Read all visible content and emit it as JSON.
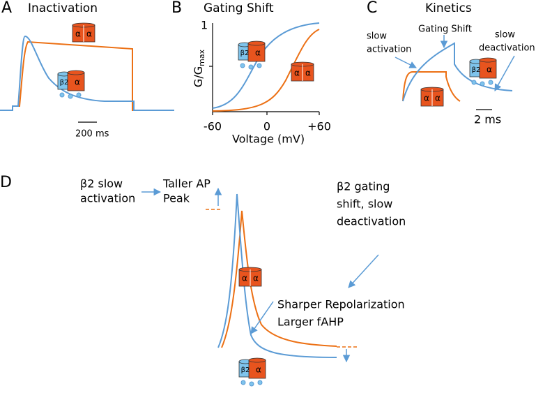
{
  "panels": {
    "a": {
      "letter": "A",
      "title": "Inactivation",
      "scale_bar": "200 ms"
    },
    "b": {
      "letter": "B",
      "title": "Gating Shift",
      "y_label": "G/G",
      "y_label_sub": "max",
      "y_top": "1",
      "x_ticks": [
        "-60",
        "0",
        "+60"
      ],
      "x_label": "Voltage (mV)"
    },
    "c": {
      "letter": "C",
      "title": "Kinetics",
      "slow_activation": [
        "slow",
        "activation"
      ],
      "gating_shift": "Gating Shift",
      "slow_deactivation": [
        "slow",
        "deactivation"
      ],
      "scale_bar": "2 ms"
    },
    "d": {
      "letter": "D",
      "beta_slow_activation": [
        "β2 slow",
        "activation"
      ],
      "taller_ap": [
        "Taller AP",
        "Peak"
      ],
      "beta_gating_shift": [
        "β2 gating",
        "shift, slow",
        "deactivation"
      ],
      "sharper_repolarization": "Sharper Repolarization",
      "larger_fahp": "Larger fAHP"
    }
  },
  "icons": {
    "alpha": "α",
    "beta": "β2"
  }
}
